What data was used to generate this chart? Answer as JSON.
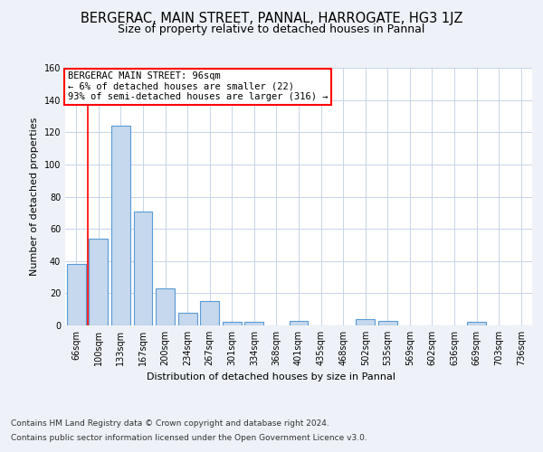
{
  "title": "BERGERAC, MAIN STREET, PANNAL, HARROGATE, HG3 1JZ",
  "subtitle": "Size of property relative to detached houses in Pannal",
  "xlabel": "Distribution of detached houses by size in Pannal",
  "ylabel": "Number of detached properties",
  "categories": [
    "66sqm",
    "100sqm",
    "133sqm",
    "167sqm",
    "200sqm",
    "234sqm",
    "267sqm",
    "301sqm",
    "334sqm",
    "368sqm",
    "401sqm",
    "435sqm",
    "468sqm",
    "502sqm",
    "535sqm",
    "569sqm",
    "602sqm",
    "636sqm",
    "669sqm",
    "703sqm",
    "736sqm"
  ],
  "values": [
    38,
    54,
    124,
    71,
    23,
    8,
    15,
    2,
    2,
    0,
    3,
    0,
    0,
    4,
    3,
    0,
    0,
    0,
    2,
    0,
    0
  ],
  "bar_color": "#c5d8ed",
  "bar_edge_color": "#5b9bd5",
  "ylim": [
    0,
    160
  ],
  "yticks": [
    0,
    20,
    40,
    60,
    80,
    100,
    120,
    140,
    160
  ],
  "annotation_box_text": "BERGERAC MAIN STREET: 96sqm\n← 6% of detached houses are smaller (22)\n93% of semi-detached houses are larger (316) →",
  "vline_x": 0.5,
  "footnote1": "Contains HM Land Registry data © Crown copyright and database right 2024.",
  "footnote2": "Contains public sector information licensed under the Open Government Licence v3.0.",
  "background_color": "#eef2f8",
  "plot_background": "#ffffff",
  "grid_color": "#c8d4e8",
  "title_fontsize": 10.5,
  "subtitle_fontsize": 9,
  "axis_label_fontsize": 8,
  "tick_fontsize": 7,
  "footnote_fontsize": 6.5,
  "annotation_fontsize": 7.5
}
